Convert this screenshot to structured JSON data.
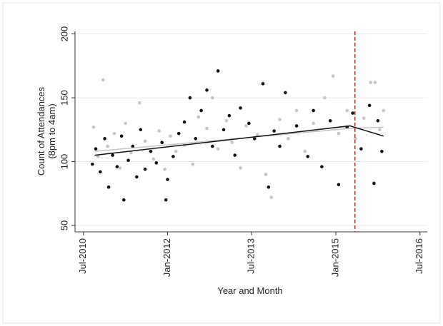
{
  "chart_data": {
    "type": "scatter",
    "xlabel": "Year and Month",
    "ylabel": [
      "Count of Attendances",
      "(8pm to 4am)"
    ],
    "xlim": [
      2010.35,
      2016.63
    ],
    "ylim": [
      45,
      202
    ],
    "xticks": [
      {
        "value": 2010.5,
        "label": "Jul-2010"
      },
      {
        "value": 2012.0,
        "label": "Jan-2012"
      },
      {
        "value": 2013.5,
        "label": "Jul-2013"
      },
      {
        "value": 2015.0,
        "label": "Jan-2015"
      },
      {
        "value": 2016.5,
        "label": "Jul-2016"
      }
    ],
    "yticks": [
      50,
      100,
      150,
      200
    ],
    "grid": true,
    "series": [
      {
        "color": "#111111",
        "x": [
          2010.66,
          2010.72,
          2010.8,
          2010.88,
          2010.95,
          2011.02,
          2011.1,
          2011.18,
          2011.22,
          2011.3,
          2011.38,
          2011.45,
          2011.52,
          2011.6,
          2011.7,
          2011.8,
          2011.9,
          2011.97,
          2012.0,
          2012.1,
          2012.2,
          2012.3,
          2012.4,
          2012.5,
          2012.6,
          2012.7,
          2012.8,
          2012.9,
          2013.0,
          2013.1,
          2013.2,
          2013.3,
          2013.45,
          2013.55,
          2013.7,
          2013.8,
          2013.9,
          2014.0,
          2014.1,
          2014.3,
          2014.5,
          2014.6,
          2014.75,
          2014.9,
          2015.05,
          2015.2,
          2015.3,
          2015.45,
          2015.6,
          2015.68,
          2015.75,
          2015.82
        ],
        "values": [
          98,
          110,
          92,
          118,
          80,
          105,
          96,
          120,
          70,
          101,
          112,
          88,
          125,
          94,
          108,
          99,
          115,
          70,
          86,
          104,
          122,
          131,
          150,
          118,
          140,
          156,
          112,
          171,
          125,
          136,
          105,
          142,
          130,
          118,
          161,
          80,
          124,
          112,
          154,
          128,
          104,
          140,
          96,
          132,
          82,
          127,
          138,
          110,
          144,
          83,
          132,
          108
        ]
      },
      {
        "color": "#c4c4c4",
        "x": [
          2010.68,
          2010.76,
          2010.85,
          2010.93,
          2011.05,
          2011.15,
          2011.25,
          2011.35,
          2011.5,
          2011.6,
          2011.75,
          2011.85,
          2011.95,
          2012.05,
          2012.15,
          2012.3,
          2012.45,
          2012.55,
          2012.7,
          2012.8,
          2012.9,
          2013.05,
          2013.15,
          2013.3,
          2013.4,
          2013.6,
          2013.75,
          2013.85,
          2014.0,
          2014.15,
          2014.3,
          2014.45,
          2014.6,
          2014.8,
          2014.95,
          2015.05,
          2015.2,
          2015.35,
          2015.5,
          2015.62,
          2015.7,
          2015.78,
          2015.85
        ],
        "values": [
          127,
          104,
          164,
          112,
          122,
          95,
          130,
          107,
          146,
          116,
          102,
          124,
          94,
          120,
          108,
          113,
          98,
          135,
          126,
          150,
          110,
          132,
          115,
          95,
          128,
          121,
          90,
          72,
          133,
          118,
          140,
          108,
          130,
          150,
          167,
          122,
          140,
          118,
          134,
          162,
          162,
          125,
          140
        ]
      }
    ],
    "fit_lines": [
      {
        "color": "#c4c4c4",
        "x": [
          2010.7,
          2015.25,
          2015.85
        ],
        "values": [
          108,
          126,
          127
        ]
      },
      {
        "color": "#111111",
        "x": [
          2010.7,
          2015.25,
          2015.85
        ],
        "values": [
          105,
          128,
          120
        ]
      }
    ],
    "reference_line": {
      "x": 2015.34,
      "color": "#d62728"
    }
  }
}
